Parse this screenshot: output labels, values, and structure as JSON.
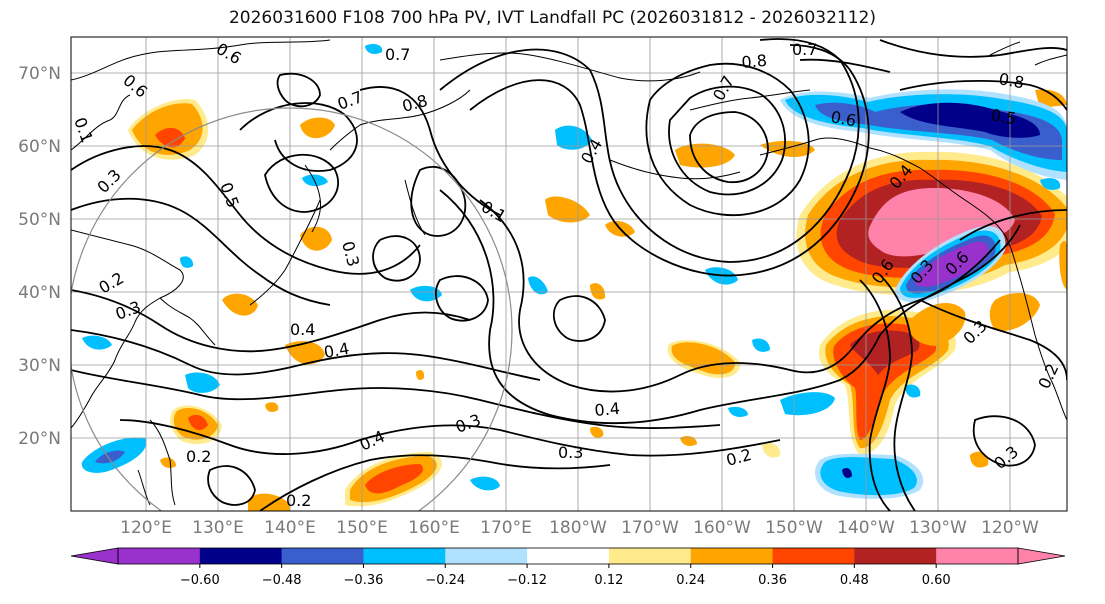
{
  "title": "2026031600 F108 700 hPa PV, IVT Landfall PC (2026031812 - 2026032112)",
  "lat_labels": [
    "70°N",
    "60°N",
    "50°N",
    "40°N",
    "30°N",
    "20°N"
  ],
  "lon_labels": [
    "120°E",
    "130°E",
    "140°E",
    "150°E",
    "160°E",
    "170°E",
    "180°W",
    "170°W",
    "160°W",
    "150°W",
    "140°W",
    "130°W",
    "120°W"
  ],
  "colorbar": {
    "colors": [
      "#9932cc",
      "#00008b",
      "#3a5fcd",
      "#00bfff",
      "#b0e2ff",
      "#ffffff",
      "#ffeb8c",
      "#ffa500",
      "#ff4500",
      "#b22222",
      "#ff82ab"
    ],
    "under_color": "#9932cc",
    "over_color": "#ff82ab",
    "ticks": [
      "−0.60",
      "−0.48",
      "−0.36",
      "−0.24",
      "−0.12",
      "0.12",
      "0.24",
      "0.36",
      "0.48",
      "0.60"
    ]
  },
  "contour_labels": [
    "0.6",
    "0.7",
    "0.6",
    "0.3",
    "0.5",
    "0.7",
    "0.8",
    "0.4",
    "0.7",
    "0.8",
    "0.7",
    "0.6",
    "0.8",
    "0.5",
    "0.6",
    "0.4",
    "0.3",
    "0.2",
    "0.3",
    "0.4",
    "0.4",
    "0.3",
    "0.4",
    "0.3",
    "0.2",
    "0.2",
    "0.2",
    "0.4",
    "0.6",
    "0.3",
    "0.1",
    "0.3",
    "0.1",
    "0.3",
    "0.2"
  ]
}
